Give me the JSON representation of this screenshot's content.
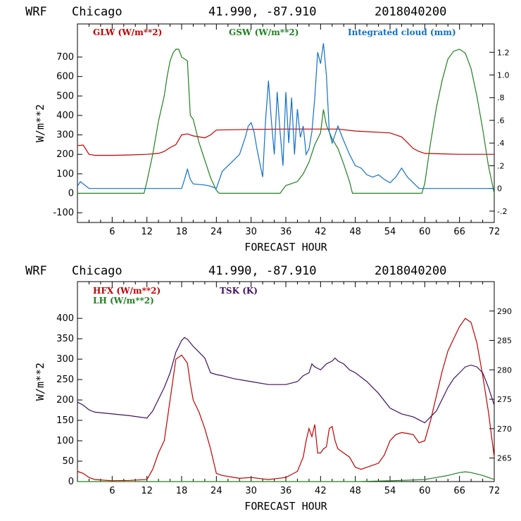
{
  "chart_data": [
    {
      "type": "line",
      "title": {
        "model": "WRF",
        "location": "Chicago",
        "coords": "41.990, -87.910",
        "init": "2018040200"
      },
      "xlabel": "FORECAST HOUR",
      "ylabel": "W/m**2",
      "xlim": [
        0,
        72
      ],
      "ylim": [
        -150,
        870
      ],
      "y2lim": [
        -0.3,
        1.45
      ],
      "xticks": [
        6,
        12,
        18,
        24,
        30,
        36,
        42,
        48,
        54,
        60,
        66,
        72
      ],
      "xtick_labels": [
        "6",
        "12",
        "18",
        "24",
        "30",
        "36",
        "42",
        "48",
        "54",
        "60",
        "66",
        "72"
      ],
      "yticks": [
        -100,
        0,
        100,
        200,
        300,
        400,
        500,
        600,
        700
      ],
      "ytick_labels": [
        "-100",
        "0",
        "100",
        "200",
        "300",
        "400",
        "500",
        "600",
        "700"
      ],
      "y2ticks": [
        -0.2,
        0,
        0.2,
        0.4,
        0.6,
        0.8,
        1.0,
        1.2
      ],
      "y2tick_labels": [
        "-.2",
        "0",
        ".2",
        ".4",
        ".6",
        ".8",
        "1.0",
        "1.2"
      ],
      "series": [
        {
          "name": "GLW (W/m**2)",
          "color": "#c00000",
          "axis": "left",
          "x": [
            0,
            1,
            2,
            3,
            6,
            9,
            12,
            14,
            15,
            16,
            17,
            18,
            19,
            20,
            21,
            22,
            23,
            24,
            30,
            36,
            42,
            45,
            48,
            54,
            56,
            57,
            58,
            59,
            60,
            66,
            72
          ],
          "y": [
            245,
            248,
            200,
            195,
            195,
            197,
            200,
            205,
            215,
            235,
            250,
            300,
            305,
            295,
            290,
            285,
            300,
            325,
            328,
            330,
            330,
            330,
            320,
            310,
            290,
            260,
            230,
            215,
            205,
            200,
            200
          ]
        },
        {
          "name": "GSW (W/m**2)",
          "color": "#208020",
          "axis": "left",
          "x": [
            0,
            11.5,
            12,
            13,
            14,
            15,
            15.5,
            16,
            16.5,
            17,
            17.5,
            18,
            18.5,
            19,
            19.5,
            20,
            21,
            22,
            23,
            24,
            24.5,
            35,
            36,
            38,
            39,
            40,
            41,
            42,
            42.5,
            43,
            44,
            45,
            46,
            47,
            47.5,
            59,
            59.5,
            60,
            61,
            62,
            63,
            64,
            65,
            66,
            67,
            68,
            69,
            70,
            71,
            72
          ],
          "y": [
            0,
            0,
            60,
            200,
            370,
            500,
            600,
            680,
            720,
            740,
            740,
            700,
            690,
            680,
            400,
            380,
            260,
            170,
            80,
            15,
            0,
            0,
            40,
            60,
            100,
            160,
            250,
            310,
            430,
            350,
            280,
            230,
            150,
            60,
            0,
            0,
            0,
            50,
            260,
            440,
            580,
            690,
            730,
            740,
            720,
            640,
            500,
            330,
            140,
            0
          ]
        },
        {
          "name": "Integrated cloud (mm)",
          "color": "#1070c8",
          "axis": "right",
          "x": [
            0,
            0.5,
            1,
            1.5,
            2,
            3,
            18,
            18.5,
            19,
            19.5,
            20,
            22,
            23,
            24,
            25,
            26,
            27,
            28,
            29,
            29.5,
            30,
            30.5,
            31,
            32,
            32.5,
            33,
            33.5,
            34,
            34.5,
            35,
            35.5,
            36,
            36.5,
            37,
            37.5,
            38,
            38.5,
            39,
            39.5,
            40,
            40.5,
            41,
            41.5,
            42,
            42.5,
            43,
            43.5,
            44,
            45,
            46,
            47,
            48,
            49,
            50,
            51,
            52,
            53,
            54,
            55,
            56,
            57,
            58,
            59,
            72
          ],
          "y": [
            0.02,
            0.06,
            0.04,
            0.02,
            0,
            0,
            0,
            0.08,
            0.17,
            0.08,
            0.04,
            0.03,
            0.02,
            0,
            0.15,
            0.2,
            0.25,
            0.3,
            0.45,
            0.55,
            0.58,
            0.5,
            0.35,
            0.1,
            0.6,
            0.95,
            0.6,
            0.3,
            0.85,
            0.5,
            0.2,
            0.85,
            0.4,
            0.8,
            0.3,
            0.7,
            0.45,
            0.55,
            0.3,
            0.35,
            0.5,
            0.8,
            1.2,
            1.1,
            1.28,
            1.0,
            0.5,
            0.4,
            0.55,
            0.42,
            0.3,
            0.2,
            0.18,
            0.12,
            0.1,
            0.12,
            0.08,
            0.05,
            0.1,
            0.18,
            0.1,
            0.05,
            0,
            0
          ]
        }
      ]
    },
    {
      "type": "line",
      "title": {
        "model": "WRF",
        "location": "Chicago",
        "coords": "41.990, -87.910",
        "init": "2018040200"
      },
      "xlabel": "FORECAST HOUR",
      "ylabel": "W/m**2",
      "xlim": [
        0,
        72
      ],
      "ylim": [
        0,
        490
      ],
      "y2lim": [
        261,
        295
      ],
      "xticks": [
        6,
        12,
        18,
        24,
        30,
        36,
        42,
        48,
        54,
        60,
        66,
        72
      ],
      "xtick_labels": [
        "6",
        "12",
        "18",
        "24",
        "30",
        "36",
        "42",
        "48",
        "54",
        "60",
        "66",
        "72"
      ],
      "yticks": [
        0,
        50,
        100,
        150,
        200,
        250,
        300,
        350,
        400
      ],
      "ytick_labels": [
        "0",
        "50",
        "100",
        "150",
        "200",
        "250",
        "300",
        "350",
        "400"
      ],
      "y2ticks": [
        265,
        270,
        275,
        280,
        285,
        290
      ],
      "y2tick_labels": [
        "265",
        "270",
        "275",
        "280",
        "285",
        "290"
      ],
      "series": [
        {
          "name": "HFX (W/m**2)",
          "color": "#c00000",
          "axis": "left",
          "x": [
            0,
            1,
            2,
            3,
            6,
            9,
            12,
            13,
            14,
            15,
            16,
            17,
            18,
            19,
            19.5,
            20,
            21,
            22,
            23,
            24,
            25,
            28,
            30,
            33,
            36,
            38,
            39,
            39.5,
            40,
            40.5,
            41,
            41.5,
            42,
            42.5,
            43,
            43.5,
            44,
            44.5,
            45,
            46,
            47,
            48,
            49,
            50,
            52,
            53,
            54,
            55,
            56,
            57,
            58,
            59,
            60,
            61,
            62,
            63,
            64,
            65,
            66,
            67,
            68,
            69,
            70,
            71,
            72
          ],
          "y": [
            25,
            20,
            10,
            5,
            2,
            3,
            5,
            30,
            70,
            100,
            200,
            300,
            310,
            290,
            240,
            200,
            170,
            130,
            80,
            20,
            15,
            8,
            10,
            5,
            10,
            25,
            60,
            100,
            130,
            110,
            140,
            70,
            70,
            80,
            85,
            130,
            135,
            100,
            80,
            70,
            60,
            35,
            30,
            35,
            45,
            65,
            100,
            115,
            120,
            118,
            115,
            95,
            100,
            150,
            210,
            270,
            320,
            350,
            380,
            400,
            390,
            340,
            260,
            170,
            60
          ]
        },
        {
          "name": "LH (W/m**2)",
          "color": "#208020",
          "axis": "left",
          "x": [
            0,
            48,
            54,
            56,
            58,
            60,
            62,
            64,
            66,
            67,
            68,
            70,
            72
          ],
          "y": [
            0,
            0,
            2,
            3,
            4,
            5,
            10,
            15,
            22,
            24,
            22,
            15,
            5
          ]
        },
        {
          "name": "TSK (K)",
          "color": "#401060",
          "axis": "right",
          "x": [
            0,
            1,
            2,
            3,
            6,
            9,
            12,
            13,
            14,
            15,
            16,
            17,
            18,
            18.5,
            19,
            20,
            21,
            22,
            23,
            24,
            25,
            27,
            30,
            33,
            36,
            38,
            39,
            40,
            40.5,
            41,
            42,
            43,
            44,
            44.5,
            45,
            46,
            47,
            48,
            50,
            52,
            54,
            56,
            58,
            59,
            60,
            61,
            62,
            63,
            64,
            65,
            66,
            67,
            68,
            69,
            70,
            71,
            72
          ],
          "y": [
            274.5,
            274,
            273.2,
            272.8,
            272.5,
            272.2,
            271.8,
            273,
            275,
            277,
            279.5,
            283,
            285,
            285.5,
            285.2,
            284,
            283,
            282,
            279.5,
            279.2,
            279,
            278.5,
            278,
            277.5,
            277.5,
            278,
            279,
            279.5,
            281,
            280.5,
            280,
            281,
            281.5,
            282,
            281.5,
            281,
            280,
            279.5,
            278,
            276,
            273.5,
            272.5,
            272,
            271.5,
            271,
            272,
            273,
            275,
            277,
            278.5,
            279.5,
            280.5,
            280.8,
            280.5,
            279.5,
            277,
            274
          ]
        }
      ]
    }
  ]
}
